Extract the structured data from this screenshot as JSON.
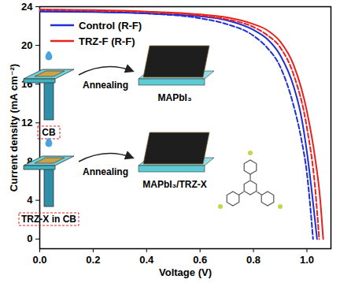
{
  "chart_data": {
    "type": "line",
    "x_label": "Voltage (V)",
    "y_label": "Current density (mA cm⁻²)",
    "xlim": [
      0,
      1.09
    ],
    "ylim": [
      -1,
      24
    ],
    "xticks": [
      {
        "value": 0,
        "label": "0.0"
      },
      {
        "value": 0.2,
        "label": "0.2"
      },
      {
        "value": 0.4,
        "label": "0.4"
      },
      {
        "value": 0.6,
        "label": "0.6"
      },
      {
        "value": 0.8,
        "label": "0.8"
      },
      {
        "value": 1,
        "label": "1.0"
      }
    ],
    "yticks": [
      0,
      4,
      8,
      12,
      16,
      20,
      24
    ],
    "legend": "top-left",
    "series": [
      {
        "name": "Control (R-F)",
        "color": "#1f2fd6",
        "line_style": "solid",
        "x": [
          0,
          0.2,
          0.4,
          0.6,
          0.7,
          0.8,
          0.85,
          0.9,
          0.95,
          0.98,
          1.0,
          1.02,
          1.038
        ],
        "values": [
          23.5,
          23.45,
          23.3,
          23.0,
          22.6,
          21.6,
          20.7,
          19.0,
          15.8,
          12.5,
          9.0,
          4.5,
          0
        ]
      },
      {
        "name": "Control (R-F)",
        "color": "#1f2fd6",
        "line_style": "dashed",
        "x": [
          0,
          0.2,
          0.4,
          0.6,
          0.7,
          0.8,
          0.85,
          0.9,
          0.95,
          0.98,
          1.0,
          1.023
        ],
        "values": [
          23.6,
          23.5,
          23.3,
          22.8,
          22.2,
          21.0,
          19.8,
          17.8,
          13.8,
          10.2,
          6.8,
          0
        ]
      },
      {
        "name": "TRZ-F (R-F)",
        "color": "#e8211e",
        "line_style": "solid",
        "x": [
          0,
          0.2,
          0.4,
          0.6,
          0.7,
          0.8,
          0.85,
          0.9,
          0.95,
          1.0,
          1.03,
          1.05,
          1.061
        ],
        "values": [
          23.7,
          23.65,
          23.5,
          23.2,
          22.9,
          22.2,
          21.6,
          20.4,
          18.0,
          13.2,
          8.5,
          4.0,
          0
        ]
      },
      {
        "name": "TRZ-F (R-F)",
        "color": "#e8211e",
        "line_style": "dashed",
        "x": [
          0,
          0.2,
          0.4,
          0.6,
          0.7,
          0.8,
          0.85,
          0.9,
          0.95,
          1.0,
          1.03,
          1.046
        ],
        "values": [
          23.7,
          23.6,
          23.45,
          23.1,
          22.7,
          21.9,
          21.1,
          19.8,
          17.0,
          11.5,
          5.5,
          0
        ]
      }
    ],
    "annotations": [
      "CB",
      "Annealing",
      "MAPbI₃",
      "TRZ-X in CB",
      "Annealing",
      "MAPbI₃/TRZ-X"
    ]
  }
}
